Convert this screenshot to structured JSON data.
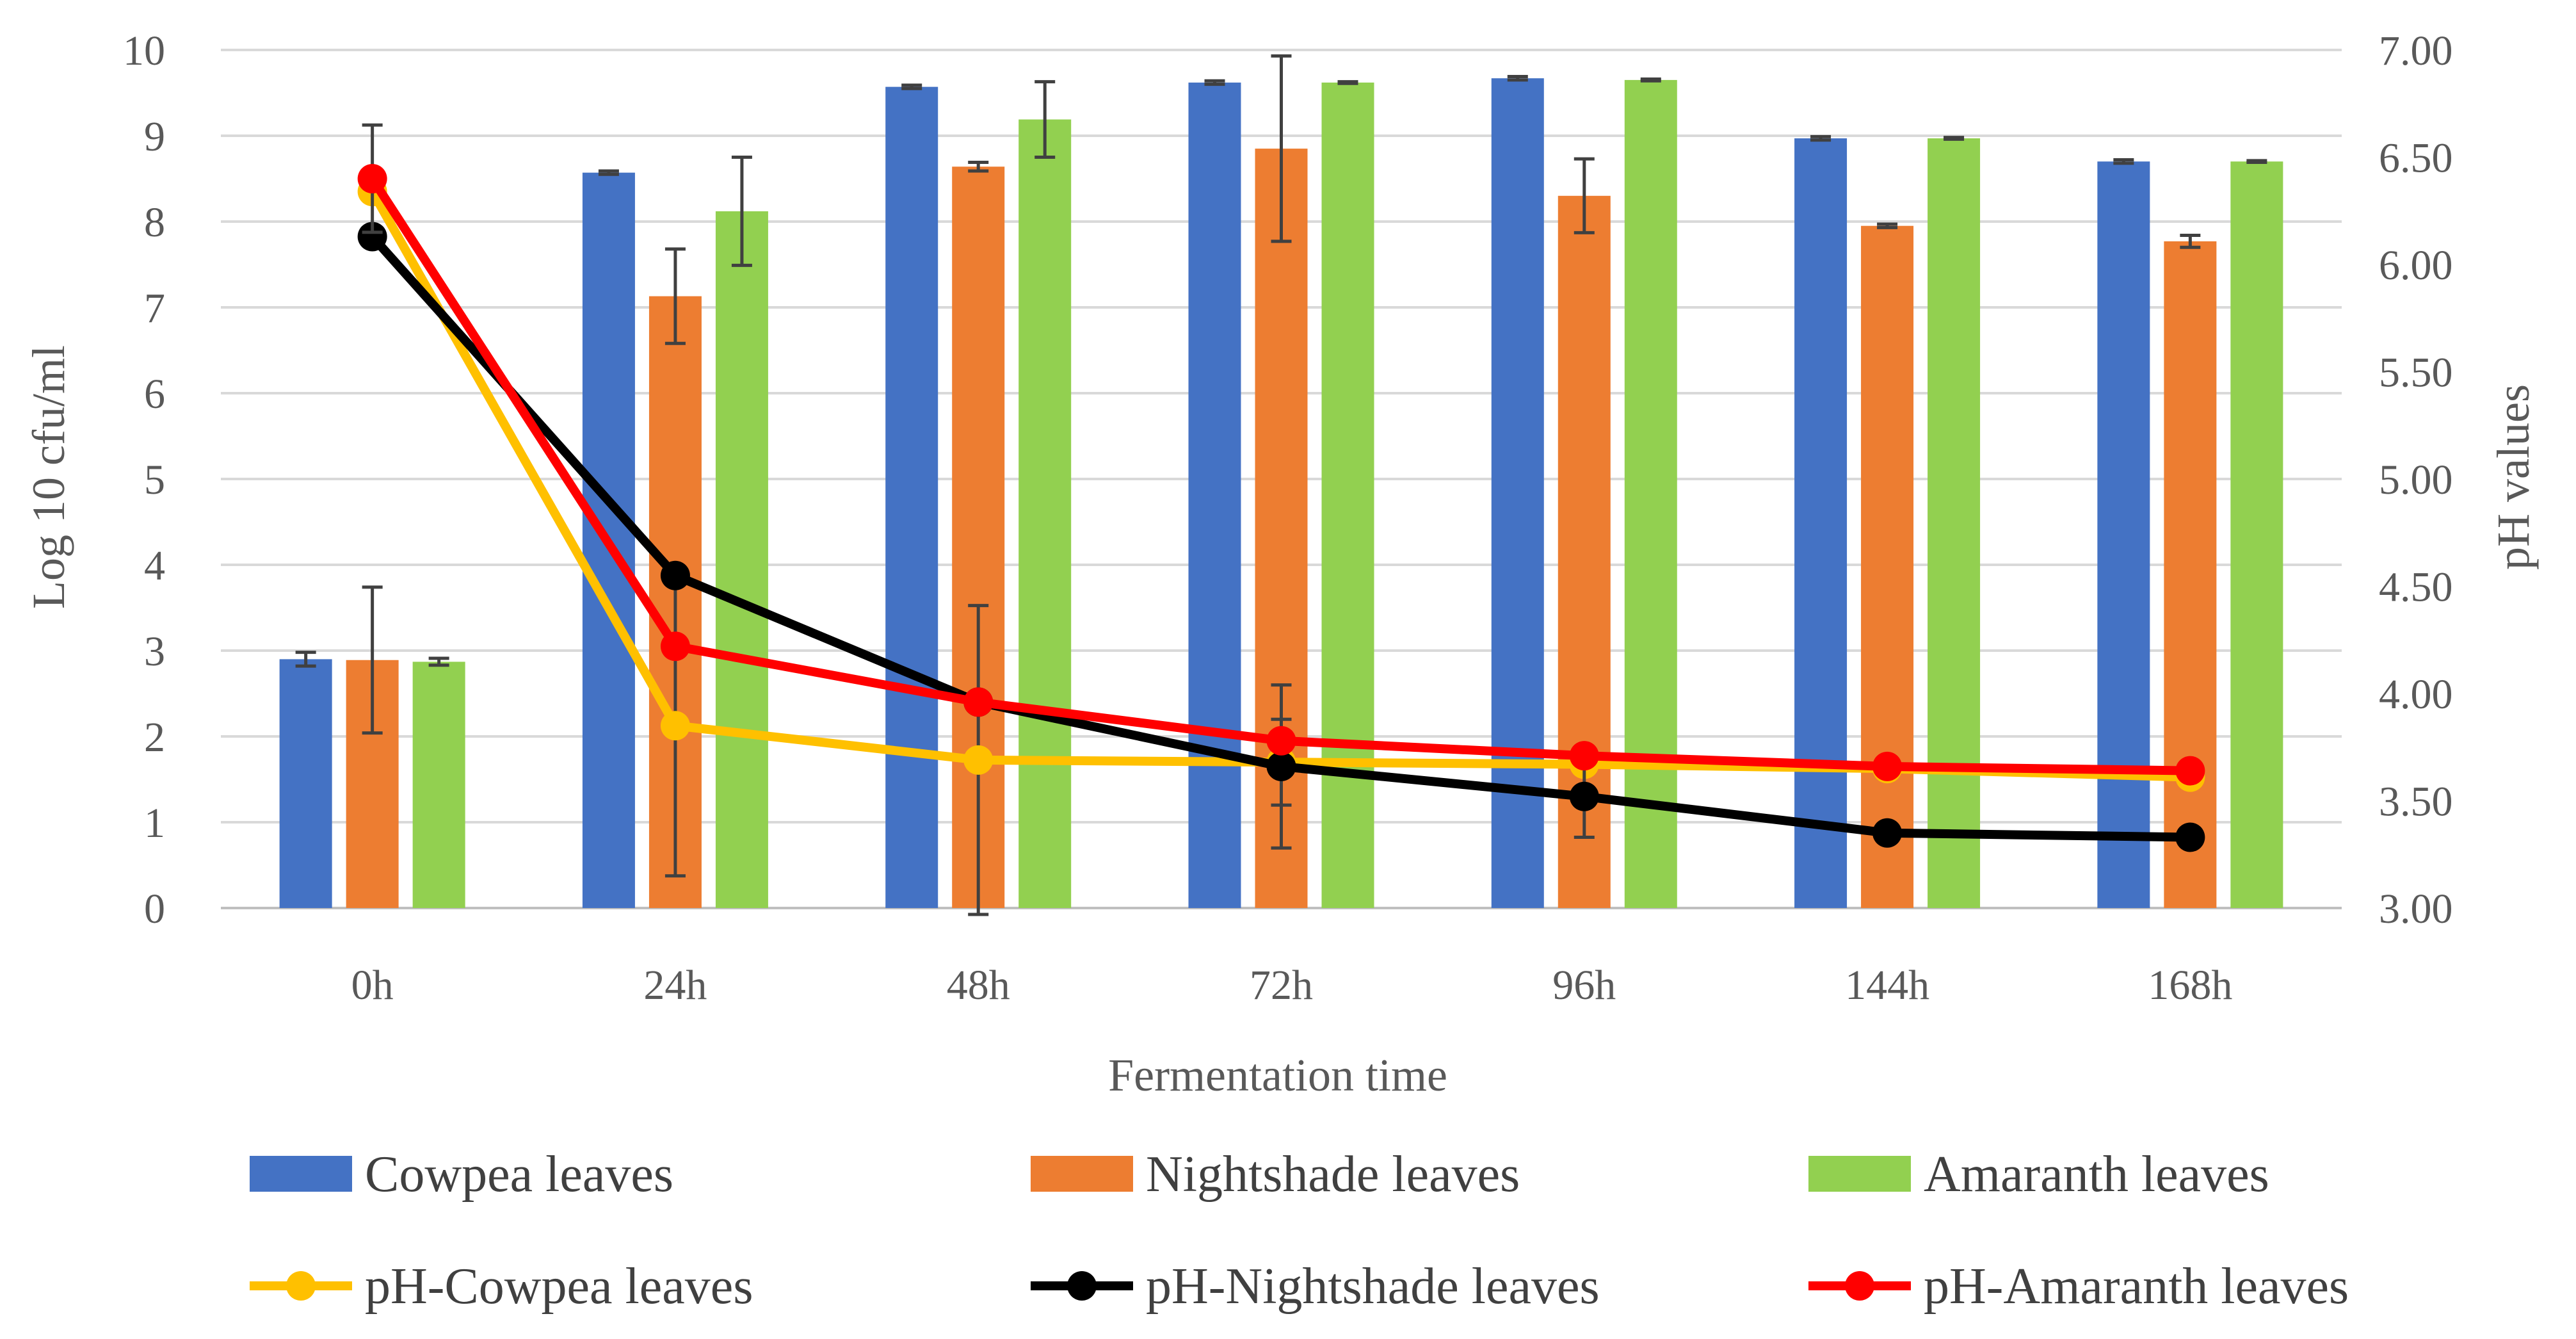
{
  "chart_data": {
    "type": "bar",
    "title": "",
    "xlabel": "Fermentation time",
    "ylabel": "Log 10 cfu/ml",
    "y2label": "pH values",
    "categories": [
      "0h",
      "24h",
      "48h",
      "72h",
      "96h",
      "144h",
      "168h"
    ],
    "ylim": [
      0,
      10
    ],
    "yticks": [
      "0",
      "1",
      "2",
      "3",
      "4",
      "5",
      "6",
      "7",
      "8",
      "9",
      "10"
    ],
    "y2lim": [
      3.0,
      7.0
    ],
    "y2ticks": [
      "3.00",
      "3.50",
      "4.00",
      "4.50",
      "5.00",
      "5.50",
      "6.00",
      "6.50",
      "7.00"
    ],
    "legend_position": "bottom",
    "bar_series": [
      {
        "name": "Cowpea leaves",
        "color": "#4472C4",
        "values": [
          2.9,
          8.57,
          9.57,
          9.62,
          9.67,
          8.97,
          8.7
        ],
        "errors": [
          0.08,
          0.02,
          0.02,
          0.02,
          0.02,
          0.02,
          0.02
        ]
      },
      {
        "name": "Nightshade leaves",
        "color": "#ED7D31",
        "values": [
          2.89,
          7.13,
          8.64,
          8.85,
          8.3,
          7.95,
          7.77
        ],
        "errors": [
          0.85,
          0.55,
          0.05,
          1.08,
          0.43,
          0.02,
          0.07
        ]
      },
      {
        "name": "Amaranth leaves",
        "color": "#92D050",
        "values": [
          2.87,
          8.12,
          9.19,
          9.62,
          9.65,
          8.97,
          8.7
        ],
        "errors": [
          0.04,
          0.63,
          0.44,
          0.01,
          0.01,
          0.01,
          0.01
        ]
      }
    ],
    "line_series": [
      {
        "name": "pH-Cowpea leaves",
        "color": "#FFC000",
        "values": [
          6.34,
          3.85,
          3.69,
          3.68,
          3.67,
          3.65,
          3.61
        ],
        "errors": [
          0,
          0.7,
          0.72,
          0.2,
          0,
          0,
          0
        ]
      },
      {
        "name": "pH-Nightshade leaves",
        "color": "#000000",
        "values": [
          6.13,
          4.55,
          3.96,
          3.66,
          3.52,
          3.35,
          3.33
        ],
        "errors": [
          0,
          0,
          0,
          0.38,
          0.19,
          0,
          0
        ]
      },
      {
        "name": "pH-Amaranth leaves",
        "color": "#FF0000",
        "values": [
          6.4,
          4.22,
          3.96,
          3.78,
          3.71,
          3.66,
          3.64
        ],
        "errors": [
          0.25,
          0,
          0,
          0,
          0,
          0,
          0
        ]
      }
    ]
  }
}
